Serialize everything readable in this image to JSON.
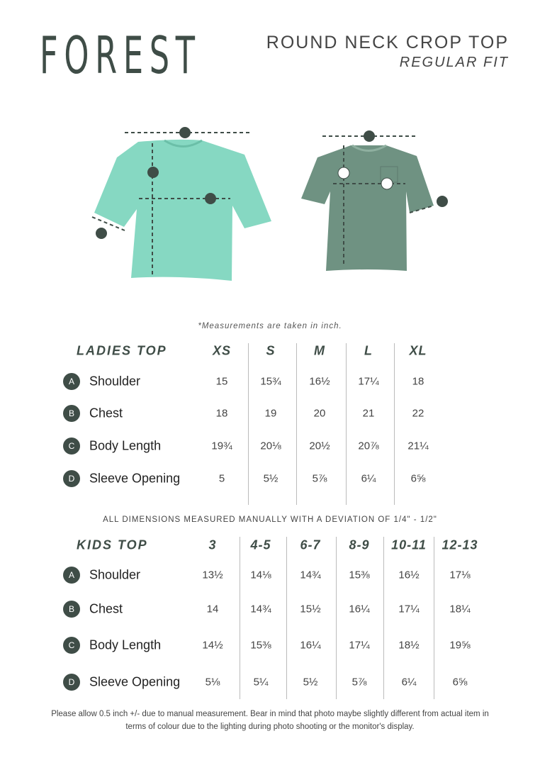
{
  "brand": "FOREST",
  "product": {
    "title": "ROUND NECK CROP TOP",
    "fit": "REGULAR FIT"
  },
  "diagram_markers": [
    "A",
    "B",
    "C",
    "D"
  ],
  "colors": {
    "brand": "#3f4d47",
    "ladies_shirt": "#86d8c2",
    "kids_shirt": "#6f9282"
  },
  "note": "*Measurements are taken in inch.",
  "ladies": {
    "heading": "LADIES TOP",
    "sizes": [
      "XS",
      "S",
      "M",
      "L",
      "XL"
    ],
    "rows": [
      {
        "badge": "A",
        "label": "Shoulder",
        "values": [
          "15",
          "15¾",
          "16½",
          "17¼",
          "18"
        ]
      },
      {
        "badge": "B",
        "label": "Chest",
        "values": [
          "18",
          "19",
          "20",
          "21",
          "22"
        ]
      },
      {
        "badge": "C",
        "label": "Body Length",
        "values": [
          "19¾",
          "20⅛",
          "20½",
          "20⅞",
          "21¼"
        ]
      },
      {
        "badge": "D",
        "label": "Sleeve Opening",
        "values": [
          "5",
          "5½",
          "5⅞",
          "6¼",
          "6⅝"
        ]
      }
    ]
  },
  "deviation": "ALL DIMENSIONS MEASURED MANUALLY WITH A DEVIATION OF 1/4\" - 1/2\"",
  "kids": {
    "heading": "KIDS TOP",
    "sizes": [
      "3",
      "4-5",
      "6-7",
      "8-9",
      "10-11",
      "12-13"
    ],
    "rows": [
      {
        "badge": "A",
        "label": "Shoulder",
        "values": [
          "13½",
          "14⅛",
          "14¾",
          "15⅜",
          "16½",
          "17⅛"
        ]
      },
      {
        "badge": "B",
        "label": "Chest",
        "values": [
          "14",
          "14¾",
          "15½",
          "16¼",
          "17¼",
          "18¼"
        ]
      },
      {
        "badge": "C",
        "label": "Body Length",
        "values": [
          "14½",
          "15⅜",
          "16¼",
          "17¼",
          "18½",
          "19⅝"
        ]
      },
      {
        "badge": "D",
        "label": "Sleeve Opening",
        "values": [
          "5⅛",
          "5¼",
          "5½",
          "5⅞",
          "6¼",
          "6⅝"
        ]
      }
    ]
  },
  "footer": "Please allow 0.5 inch +/- due to manual measurement. Bear in mind that photo maybe slightly different from actual item in terms of colour due to the lighting during photo shooting or the monitor's display."
}
